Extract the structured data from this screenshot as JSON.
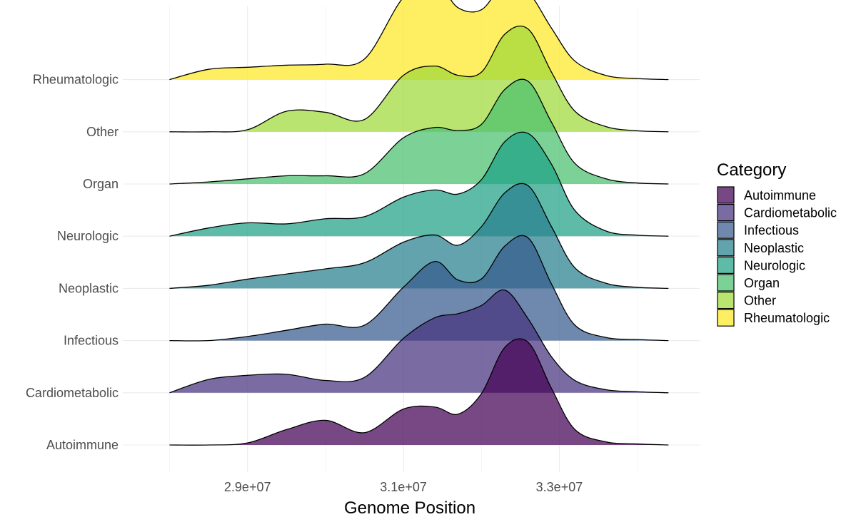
{
  "chart_data": {
    "type": "ridgeline",
    "xlabel": "Genome Position",
    "xlim": [
      27400000,
      34800000
    ],
    "x_ticks": [
      29000000,
      31000000,
      33000000
    ],
    "x_tick_labels": [
      "2.9e+07",
      "3.1e+07",
      "3.3e+07"
    ],
    "grid": true,
    "legend": {
      "title": "Category",
      "position": "right"
    },
    "x": [
      28000000,
      28500000,
      29000000,
      29500000,
      30000000,
      30500000,
      31000000,
      31400000,
      31700000,
      32000000,
      32300000,
      32600000,
      32900000,
      33200000,
      33600000,
      34000000,
      34400000
    ],
    "series": [
      {
        "name": "Autoimmune",
        "color": "#440154",
        "values": [
          0.0,
          0.0,
          0.02,
          0.15,
          0.24,
          0.12,
          0.35,
          0.37,
          0.3,
          0.5,
          0.95,
          1.0,
          0.55,
          0.15,
          0.03,
          0.01,
          0.0
        ]
      },
      {
        "name": "Cardiometabolic",
        "color": "#46337E",
        "values": [
          0.0,
          0.13,
          0.17,
          0.18,
          0.12,
          0.15,
          0.53,
          0.73,
          0.77,
          0.85,
          1.0,
          0.72,
          0.35,
          0.12,
          0.03,
          0.01,
          0.0
        ]
      },
      {
        "name": "Infectious",
        "color": "#365C8D",
        "values": [
          0.0,
          0.0,
          0.04,
          0.1,
          0.16,
          0.15,
          0.52,
          0.77,
          0.59,
          0.6,
          0.92,
          1.0,
          0.55,
          0.15,
          0.03,
          0.01,
          0.0
        ]
      },
      {
        "name": "Neoplastic",
        "color": "#277F8E",
        "values": [
          0.0,
          0.03,
          0.09,
          0.14,
          0.19,
          0.25,
          0.45,
          0.52,
          0.42,
          0.6,
          0.93,
          1.0,
          0.6,
          0.2,
          0.05,
          0.01,
          0.0
        ]
      },
      {
        "name": "Neurologic",
        "color": "#1FA187",
        "values": [
          0.0,
          0.08,
          0.13,
          0.12,
          0.17,
          0.19,
          0.38,
          0.45,
          0.41,
          0.55,
          0.92,
          1.0,
          0.7,
          0.25,
          0.05,
          0.01,
          0.0
        ]
      },
      {
        "name": "Organ",
        "color": "#4AC16D",
        "values": [
          0.0,
          0.02,
          0.05,
          0.08,
          0.08,
          0.1,
          0.45,
          0.55,
          0.52,
          0.58,
          0.92,
          1.0,
          0.6,
          0.2,
          0.05,
          0.01,
          0.0
        ]
      },
      {
        "name": "Other",
        "color": "#A0DA39",
        "values": [
          0.0,
          0.0,
          0.02,
          0.2,
          0.19,
          0.12,
          0.55,
          0.64,
          0.55,
          0.58,
          0.95,
          1.0,
          0.58,
          0.2,
          0.05,
          0.01,
          0.0
        ]
      },
      {
        "name": "Rheumatologic",
        "color": "#FDE725",
        "values": [
          0.0,
          0.1,
          0.12,
          0.14,
          0.15,
          0.2,
          0.8,
          0.95,
          0.7,
          0.68,
          0.93,
          0.85,
          0.5,
          0.18,
          0.04,
          0.01,
          0.0
        ]
      }
    ]
  }
}
